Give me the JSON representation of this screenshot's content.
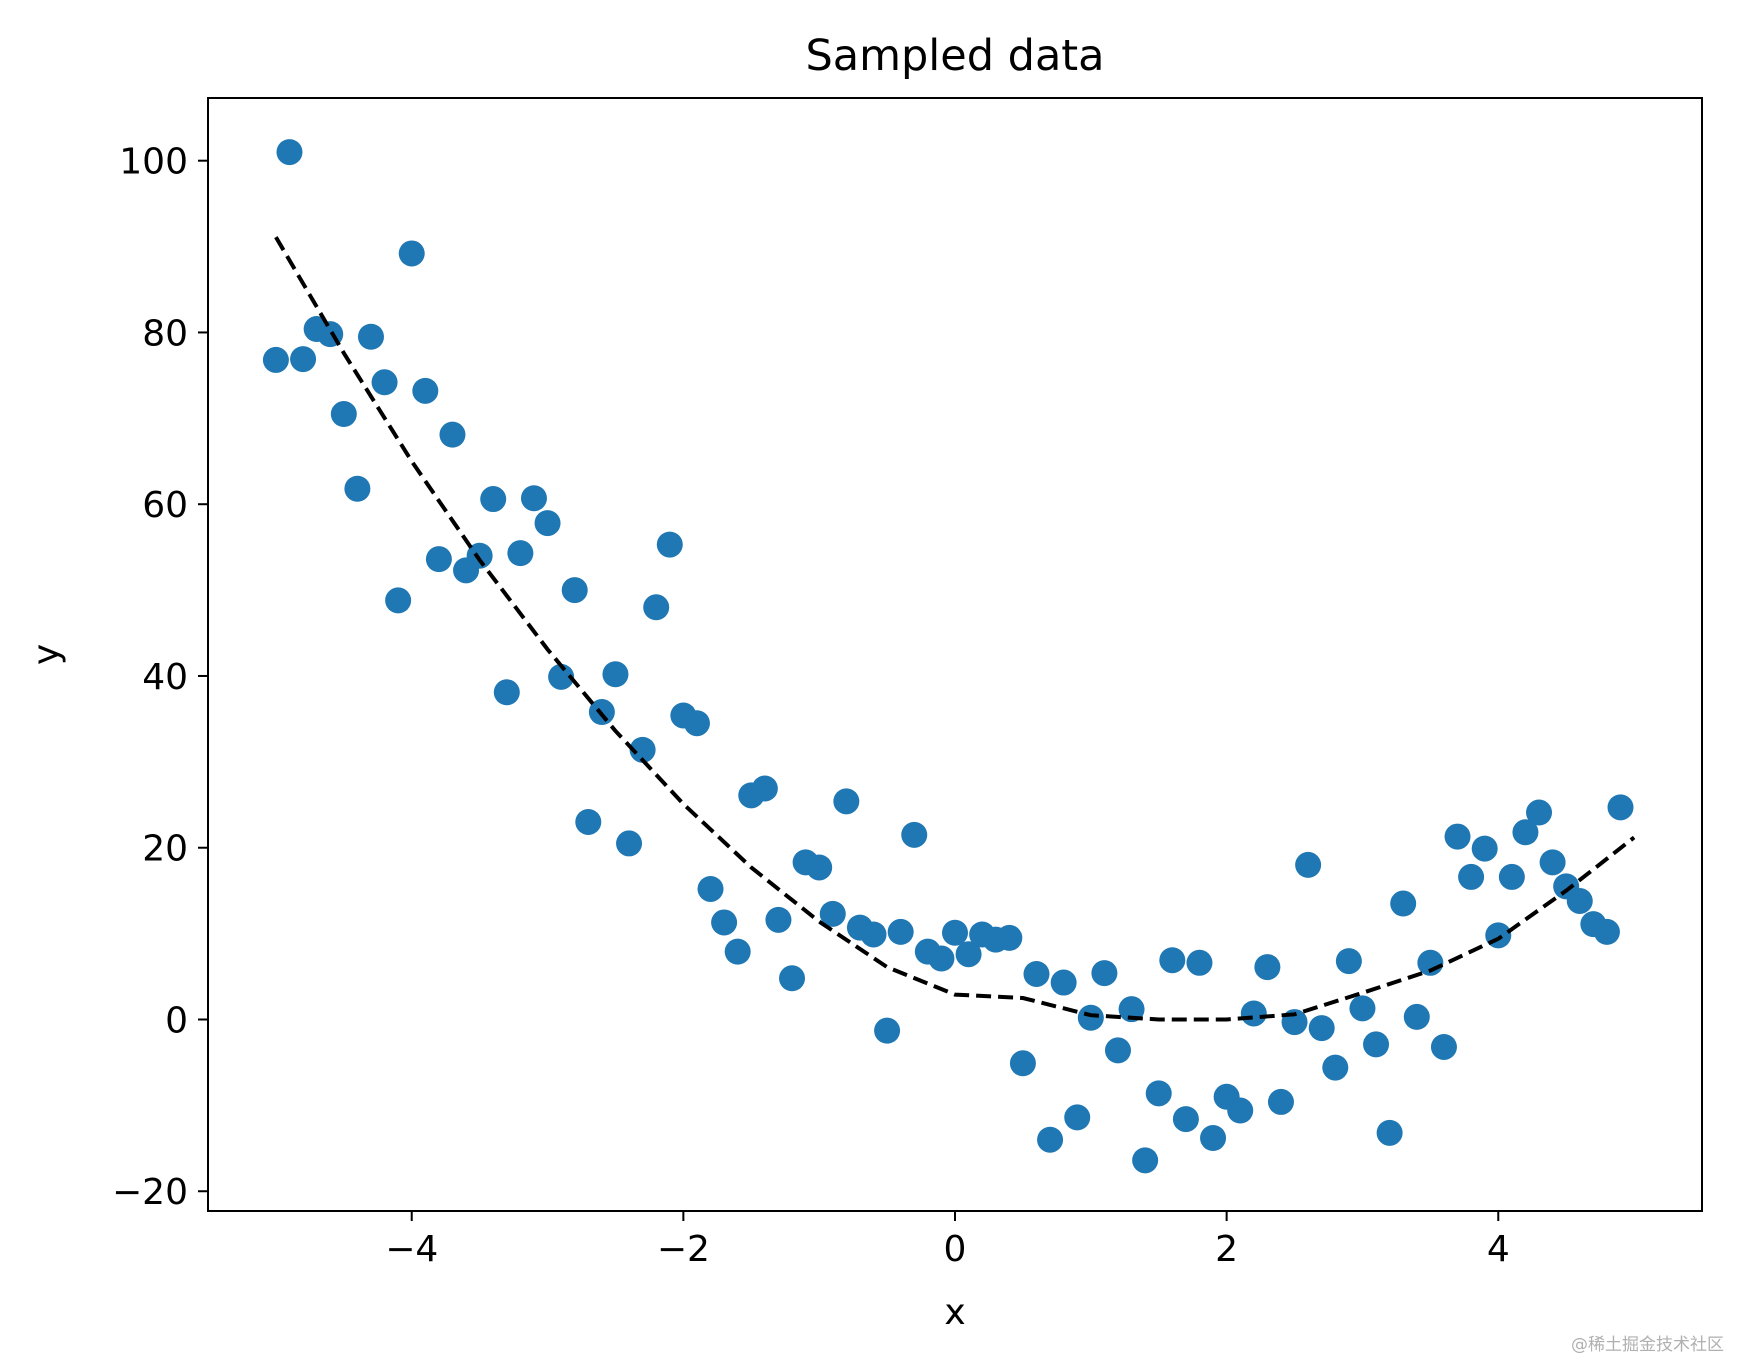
{
  "chart_data": {
    "type": "scatter",
    "title": "Sampled data",
    "xlabel": "x",
    "ylabel": "y",
    "xlim": [
      -5.5,
      5.5
    ],
    "ylim": [
      -22.3,
      107.3
    ],
    "xticks": [
      -4,
      -2,
      0,
      2,
      4
    ],
    "xtick_labels": [
      "−4",
      "−2",
      "0",
      "2",
      "4"
    ],
    "yticks": [
      -20,
      0,
      20,
      40,
      60,
      80,
      100
    ],
    "ytick_labels": [
      "−20",
      "0",
      "20",
      "40",
      "60",
      "80",
      "100"
    ],
    "grid": false,
    "series": [
      {
        "kind": "scatter",
        "color": "#1f77b4",
        "points": [
          [
            -5.0,
            76.8
          ],
          [
            -4.9,
            101.0
          ],
          [
            -4.8,
            76.9
          ],
          [
            -4.7,
            80.4
          ],
          [
            -4.6,
            79.8
          ],
          [
            -4.5,
            70.5
          ],
          [
            -4.4,
            61.8
          ],
          [
            -4.3,
            79.5
          ],
          [
            -4.2,
            74.2
          ],
          [
            -4.1,
            48.8
          ],
          [
            -4.0,
            89.2
          ],
          [
            -3.9,
            73.2
          ],
          [
            -3.8,
            53.6
          ],
          [
            -3.7,
            68.1
          ],
          [
            -3.6,
            52.3
          ],
          [
            -3.5,
            54.0
          ],
          [
            -3.4,
            60.6
          ],
          [
            -3.3,
            38.1
          ],
          [
            -3.2,
            54.3
          ],
          [
            -3.1,
            60.7
          ],
          [
            -3.0,
            57.8
          ],
          [
            -2.9,
            39.9
          ],
          [
            -2.8,
            50.0
          ],
          [
            -2.7,
            23.0
          ],
          [
            -2.6,
            35.8
          ],
          [
            -2.5,
            40.2
          ],
          [
            -2.4,
            20.5
          ],
          [
            -2.3,
            31.4
          ],
          [
            -2.2,
            48.0
          ],
          [
            -2.1,
            55.3
          ],
          [
            -2.0,
            35.4
          ],
          [
            -1.9,
            34.5
          ],
          [
            -1.8,
            15.2
          ],
          [
            -1.7,
            11.3
          ],
          [
            -1.6,
            7.9
          ],
          [
            -1.5,
            26.1
          ],
          [
            -1.4,
            26.9
          ],
          [
            -1.3,
            11.6
          ],
          [
            -1.2,
            4.8
          ],
          [
            -1.1,
            18.3
          ],
          [
            -1.0,
            17.7
          ],
          [
            -0.9,
            12.3
          ],
          [
            -0.8,
            25.4
          ],
          [
            -0.7,
            10.7
          ],
          [
            -0.6,
            9.9
          ],
          [
            -0.5,
            -1.3
          ],
          [
            -0.4,
            10.2
          ],
          [
            -0.3,
            21.5
          ],
          [
            -0.2,
            7.9
          ],
          [
            -0.1,
            7.1
          ],
          [
            0.0,
            10.1
          ],
          [
            0.1,
            7.6
          ],
          [
            0.2,
            9.9
          ],
          [
            0.3,
            9.3
          ],
          [
            0.4,
            9.5
          ],
          [
            0.5,
            -5.1
          ],
          [
            0.6,
            5.3
          ],
          [
            0.7,
            -14.0
          ],
          [
            0.8,
            4.3
          ],
          [
            0.9,
            -11.4
          ],
          [
            1.0,
            0.2
          ],
          [
            1.1,
            5.4
          ],
          [
            1.2,
            -3.6
          ],
          [
            1.3,
            1.2
          ],
          [
            1.4,
            -16.4
          ],
          [
            1.5,
            -8.6
          ],
          [
            1.6,
            6.9
          ],
          [
            1.7,
            -11.6
          ],
          [
            1.8,
            6.6
          ],
          [
            1.9,
            -13.8
          ],
          [
            2.0,
            -9.0
          ],
          [
            2.1,
            -10.6
          ],
          [
            2.2,
            0.7
          ],
          [
            2.3,
            6.1
          ],
          [
            2.4,
            -9.6
          ],
          [
            2.5,
            -0.3
          ],
          [
            2.6,
            18.0
          ],
          [
            2.7,
            -1.0
          ],
          [
            2.8,
            -5.6
          ],
          [
            2.9,
            6.8
          ],
          [
            3.0,
            1.3
          ],
          [
            3.1,
            -2.9
          ],
          [
            3.2,
            -13.2
          ],
          [
            3.3,
            13.5
          ],
          [
            3.4,
            0.3
          ],
          [
            3.5,
            6.6
          ],
          [
            3.6,
            -3.2
          ],
          [
            3.7,
            21.3
          ],
          [
            3.8,
            16.6
          ],
          [
            3.9,
            19.9
          ],
          [
            4.0,
            9.8
          ],
          [
            4.1,
            16.6
          ],
          [
            4.2,
            21.8
          ],
          [
            4.3,
            24.1
          ],
          [
            4.4,
            18.3
          ],
          [
            4.5,
            15.5
          ],
          [
            4.6,
            13.8
          ],
          [
            4.7,
            11.1
          ],
          [
            4.8,
            10.2
          ],
          [
            4.9,
            24.7
          ]
        ]
      },
      {
        "kind": "line",
        "style": "dashed",
        "color": "#000000",
        "x": [
          -5.0,
          -4.5,
          -4.0,
          -3.5,
          -3.0,
          -2.5,
          -2.0,
          -1.5,
          -1.0,
          -0.5,
          0.0,
          0.5,
          1.0,
          1.5,
          2.0,
          2.5,
          3.0,
          3.5,
          4.0,
          4.5,
          5.0
        ],
        "y": [
          91.1,
          77.6,
          65.0,
          53.5,
          43.1,
          33.6,
          25.1,
          17.7,
          11.4,
          6.1,
          2.9,
          2.5,
          0.5,
          0.0,
          0.0,
          0.6,
          3.1,
          5.7,
          9.4,
          15.0,
          21.2
        ]
      }
    ]
  },
  "watermark": "@稀土掘金技术社区"
}
